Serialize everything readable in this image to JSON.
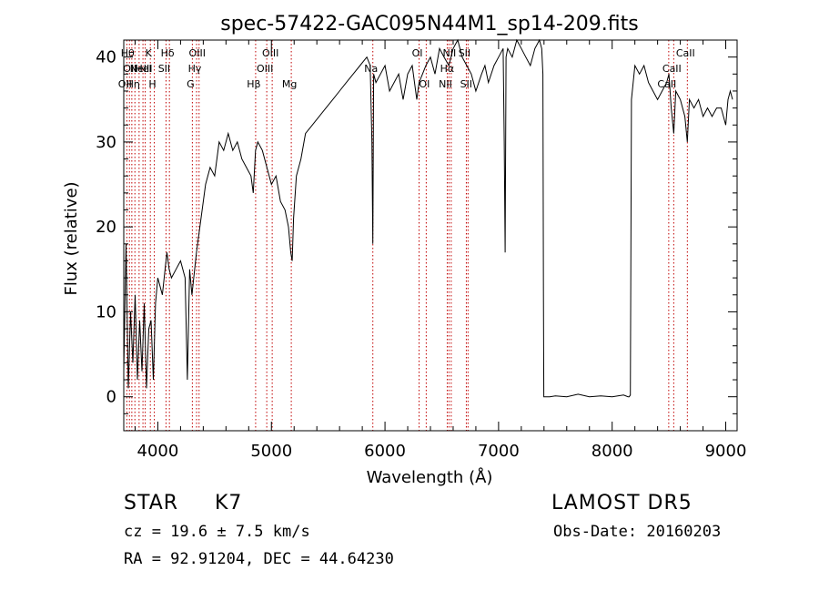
{
  "chart_data": {
    "type": "line",
    "title": "spec-57422-GAC095N44M1_sp14-209.fits",
    "xlabel": "Wavelength (Å)",
    "ylabel": "Flux (relative)",
    "xlim": [
      3700,
      9100
    ],
    "ylim": [
      -4,
      42
    ],
    "xticks": [
      4000,
      5000,
      6000,
      7000,
      8000,
      9000
    ],
    "yticks": [
      0,
      10,
      20,
      30,
      40
    ],
    "grid": false,
    "series": [
      {
        "x": [
          3700,
          3720,
          3740,
          3760,
          3780,
          3800,
          3820,
          3840,
          3860,
          3880,
          3900,
          3920,
          3940,
          3960,
          3980,
          4000,
          4040,
          4080,
          4100,
          4120,
          4160,
          4200,
          4240,
          4260,
          4280,
          4300,
          4340,
          4380,
          4420,
          4460,
          4500,
          4540,
          4580,
          4620,
          4660,
          4700,
          4740,
          4780,
          4820,
          4840,
          4860,
          4880,
          4920,
          4960,
          5000,
          5040,
          5080,
          5120,
          5150,
          5170,
          5183,
          5195,
          5220,
          5260,
          5300,
          5360,
          5420,
          5480,
          5540,
          5600,
          5660,
          5720,
          5780,
          5840,
          5870,
          5885,
          5893,
          5900,
          5920,
          5960,
          6000,
          6040,
          6080,
          6120,
          6160,
          6200,
          6240,
          6280,
          6300,
          6330,
          6360,
          6400,
          6440,
          6480,
          6520,
          6563,
          6600,
          6640,
          6680,
          6720,
          6760,
          6800,
          6850,
          6880,
          6910,
          6960,
          7000,
          7040,
          7050,
          7058,
          7066,
          7080,
          7120,
          7160,
          7200,
          7240,
          7280,
          7320,
          7360,
          7380,
          7390,
          7395,
          7398,
          7400,
          7450,
          7500,
          7600,
          7700,
          7800,
          7900,
          8000,
          8100,
          8140,
          8150,
          8160,
          8170,
          8200,
          8240,
          8280,
          8320,
          8360,
          8400,
          8440,
          8480,
          8500,
          8520,
          8542,
          8560,
          8600,
          8640,
          8662,
          8680,
          8720,
          8760,
          8800,
          8840,
          8880,
          8920,
          8960,
          9000,
          9020,
          9040,
          9060
        ],
        "y": [
          3,
          18,
          1,
          10,
          4,
          12,
          2,
          9,
          3,
          11,
          1,
          8,
          9,
          2,
          11,
          14,
          12,
          17,
          15,
          14,
          15,
          16,
          14,
          2,
          15,
          12,
          17,
          21,
          25,
          27,
          26,
          30,
          29,
          31,
          29,
          30,
          28,
          27,
          26,
          24,
          29,
          30,
          29,
          27,
          25,
          26,
          23,
          22,
          20,
          17,
          16,
          21,
          26,
          28,
          31,
          32,
          33,
          34,
          35,
          36,
          37,
          38,
          39,
          40,
          39,
          30,
          18,
          38,
          37,
          38,
          39,
          36,
          37,
          38,
          35,
          38,
          39,
          35,
          37,
          38,
          39,
          40,
          38,
          41,
          40,
          39,
          41,
          42,
          40,
          39,
          38,
          36,
          38,
          39,
          37,
          39,
          40,
          41,
          30,
          17,
          40,
          41,
          40,
          42,
          41,
          40,
          39,
          41,
          42,
          41,
          38,
          12,
          0,
          0,
          0,
          0.1,
          0,
          0.3,
          0,
          0.1,
          0,
          0.2,
          0,
          0,
          0.2,
          35,
          39,
          38,
          39,
          37,
          36,
          35,
          36,
          37,
          38,
          34,
          31,
          36,
          35,
          33,
          30,
          35,
          34,
          35,
          33,
          34,
          33,
          34,
          34,
          32,
          35,
          36,
          35
        ]
      }
    ],
    "lines": [
      {
        "x": 3727,
        "label": "OII",
        "row": 2
      },
      {
        "x": 3750,
        "label": "Hθ",
        "row": 0
      },
      {
        "x": 3771,
        "label": "OII",
        "row": 1
      },
      {
        "x": 3798,
        "label": "Hη",
        "row": 2
      },
      {
        "x": 3835,
        "label": "",
        "row": 0
      },
      {
        "x": 3869,
        "label": "NeIII",
        "row": 1
      },
      {
        "x": 3889,
        "label": "HeI",
        "row": 1
      },
      {
        "x": 3934,
        "label": "K",
        "row": 0
      },
      {
        "x": 3969,
        "label": "H",
        "row": 2
      },
      {
        "x": 4072,
        "label": "SII",
        "row": 1
      },
      {
        "x": 4102,
        "label": "Hδ",
        "row": 0
      },
      {
        "x": 4304,
        "label": "G",
        "row": 2
      },
      {
        "x": 4341,
        "label": "Hγ",
        "row": 1
      },
      {
        "x": 4363,
        "label": "OIII",
        "row": 0
      },
      {
        "x": 4861,
        "label": "Hβ",
        "row": 2
      },
      {
        "x": 4959,
        "label": "OIII",
        "row": 1
      },
      {
        "x": 5007,
        "label": "OIII",
        "row": 0
      },
      {
        "x": 5175,
        "label": "Mg",
        "row": 2
      },
      {
        "x": 5893,
        "label": "Na",
        "row": 1
      },
      {
        "x": 6300,
        "label": "OI",
        "row": 0
      },
      {
        "x": 6363,
        "label": "OI",
        "row": 2
      },
      {
        "x": 6548,
        "label": "NII",
        "row": 2
      },
      {
        "x": 6563,
        "label": "Hα",
        "row": 1
      },
      {
        "x": 6583,
        "label": "NII",
        "row": 0
      },
      {
        "x": 6716,
        "label": "SII",
        "row": 0
      },
      {
        "x": 6731,
        "label": "SII",
        "row": 2
      },
      {
        "x": 8498,
        "label": "CaII",
        "row": 2
      },
      {
        "x": 8542,
        "label": "CaII",
        "row": 1
      },
      {
        "x": 8662,
        "label": "CaII",
        "row": 0
      }
    ]
  },
  "info": {
    "object_class": "STAR",
    "subclass": "K7",
    "survey": "LAMOST  DR5",
    "redshift": "cz = 19.6 ± 7.5 km/s",
    "obs_date": "Obs-Date: 20160203",
    "coords": "RA =  92.91204, DEC =  44.64230"
  },
  "colors": {
    "spectrum": "#000000",
    "line_marker": "#c00000",
    "text": "#000000"
  }
}
